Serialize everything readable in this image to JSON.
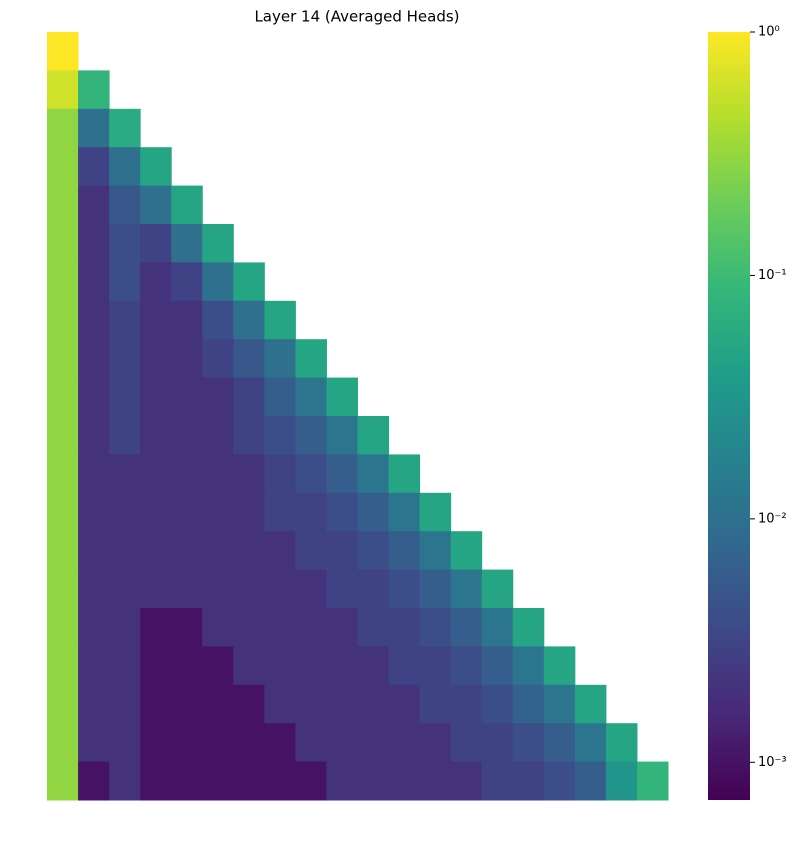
{
  "chart_data": {
    "type": "heatmap",
    "title": "Layer 14 (Averaged Heads)",
    "colormap": "viridis",
    "log_scale": true,
    "clim": [
      0.0007,
      1
    ],
    "cticks": [
      {
        "value": 1,
        "label": "10⁰"
      },
      {
        "value": 0.1,
        "label": "10⁻¹"
      },
      {
        "value": 0.01,
        "label": "10⁻²"
      },
      {
        "value": 0.001,
        "label": "10⁻³"
      }
    ],
    "values": [
      [
        1,
        null,
        null,
        null,
        null,
        null,
        null,
        null,
        null,
        null,
        null,
        null,
        null,
        null,
        null,
        null,
        null,
        null,
        null,
        null
      ],
      [
        0.6,
        0.08,
        null,
        null,
        null,
        null,
        null,
        null,
        null,
        null,
        null,
        null,
        null,
        null,
        null,
        null,
        null,
        null,
        null,
        null
      ],
      [
        0.3,
        0.01,
        0.06,
        null,
        null,
        null,
        null,
        null,
        null,
        null,
        null,
        null,
        null,
        null,
        null,
        null,
        null,
        null,
        null,
        null
      ],
      [
        0.3,
        0.003,
        0.01,
        0.05,
        null,
        null,
        null,
        null,
        null,
        null,
        null,
        null,
        null,
        null,
        null,
        null,
        null,
        null,
        null,
        null
      ],
      [
        0.3,
        0.002,
        0.005,
        0.01,
        0.05,
        null,
        null,
        null,
        null,
        null,
        null,
        null,
        null,
        null,
        null,
        null,
        null,
        null,
        null,
        null
      ],
      [
        0.3,
        0.002,
        0.004,
        0.003,
        0.01,
        0.05,
        null,
        null,
        null,
        null,
        null,
        null,
        null,
        null,
        null,
        null,
        null,
        null,
        null,
        null
      ],
      [
        0.3,
        0.002,
        0.004,
        0.002,
        0.003,
        0.01,
        0.05,
        null,
        null,
        null,
        null,
        null,
        null,
        null,
        null,
        null,
        null,
        null,
        null,
        null
      ],
      [
        0.3,
        0.002,
        0.003,
        0.002,
        0.002,
        0.004,
        0.01,
        0.05,
        null,
        null,
        null,
        null,
        null,
        null,
        null,
        null,
        null,
        null,
        null,
        null
      ],
      [
        0.3,
        0.002,
        0.003,
        0.002,
        0.002,
        0.003,
        0.005,
        0.01,
        0.05,
        null,
        null,
        null,
        null,
        null,
        null,
        null,
        null,
        null,
        null,
        null
      ],
      [
        0.3,
        0.002,
        0.003,
        0.002,
        0.002,
        0.002,
        0.003,
        0.006,
        0.012,
        0.05,
        null,
        null,
        null,
        null,
        null,
        null,
        null,
        null,
        null,
        null
      ],
      [
        0.3,
        0.002,
        0.003,
        0.002,
        0.002,
        0.002,
        0.003,
        0.004,
        0.006,
        0.012,
        0.05,
        null,
        null,
        null,
        null,
        null,
        null,
        null,
        null,
        null
      ],
      [
        0.3,
        0.002,
        0.002,
        0.002,
        0.002,
        0.002,
        0.002,
        0.003,
        0.004,
        0.006,
        0.012,
        0.05,
        null,
        null,
        null,
        null,
        null,
        null,
        null,
        null
      ],
      [
        0.3,
        0.002,
        0.002,
        0.002,
        0.002,
        0.002,
        0.002,
        0.003,
        0.003,
        0.004,
        0.006,
        0.012,
        0.05,
        null,
        null,
        null,
        null,
        null,
        null,
        null
      ],
      [
        0.3,
        0.002,
        0.002,
        0.002,
        0.002,
        0.002,
        0.002,
        0.002,
        0.003,
        0.003,
        0.004,
        0.006,
        0.012,
        0.05,
        null,
        null,
        null,
        null,
        null,
        null
      ],
      [
        0.3,
        0.002,
        0.002,
        0.002,
        0.002,
        0.002,
        0.002,
        0.002,
        0.002,
        0.003,
        0.003,
        0.004,
        0.006,
        0.012,
        0.05,
        null,
        null,
        null,
        null,
        null
      ],
      [
        0.3,
        0.002,
        0.002,
        0.001,
        0.001,
        0.002,
        0.002,
        0.002,
        0.002,
        0.002,
        0.003,
        0.003,
        0.004,
        0.006,
        0.012,
        0.05,
        null,
        null,
        null,
        null
      ],
      [
        0.3,
        0.002,
        0.002,
        0.001,
        0.001,
        0.001,
        0.002,
        0.002,
        0.002,
        0.002,
        0.002,
        0.003,
        0.003,
        0.004,
        0.006,
        0.012,
        0.05,
        null,
        null,
        null
      ],
      [
        0.3,
        0.002,
        0.002,
        0.001,
        0.001,
        0.001,
        0.001,
        0.002,
        0.002,
        0.002,
        0.002,
        0.002,
        0.003,
        0.003,
        0.004,
        0.007,
        0.012,
        0.05,
        null,
        null
      ],
      [
        0.3,
        0.002,
        0.002,
        0.001,
        0.001,
        0.001,
        0.001,
        0.001,
        0.002,
        0.002,
        0.002,
        0.002,
        0.002,
        0.003,
        0.003,
        0.004,
        0.006,
        0.012,
        0.05,
        null
      ],
      [
        0.3,
        0.001,
        0.002,
        0.001,
        0.001,
        0.001,
        0.001,
        0.001,
        0.001,
        0.002,
        0.002,
        0.002,
        0.002,
        0.002,
        0.003,
        0.003,
        0.004,
        0.006,
        0.03,
        0.08
      ]
    ]
  }
}
